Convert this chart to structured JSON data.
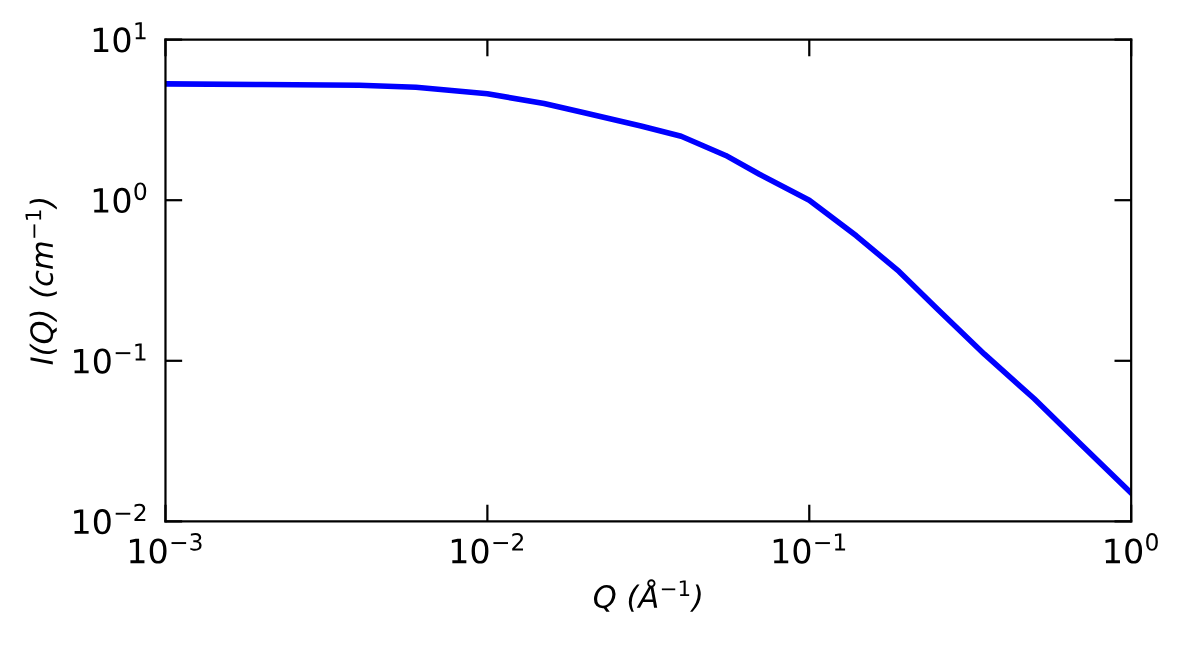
{
  "chart_data": {
    "type": "line",
    "xlabel": "Q (Å$^{−1}$)",
    "ylabel": "I(Q) (cm$^{−1}$)",
    "log": "xy",
    "grid": false,
    "legend": false,
    "line_style": "solid",
    "marker": "none",
    "x": [
      0.001,
      0.002,
      0.004,
      0.006,
      0.01,
      0.015,
      0.02,
      0.03,
      0.04,
      0.055,
      0.07,
      0.1,
      0.14,
      0.19,
      0.25,
      0.35,
      0.5,
      0.7,
      1.0
    ],
    "series": [
      {
        "color": "#0000ff",
        "values": [
          5.3,
          5.25,
          5.2,
          5.05,
          4.6,
          4.0,
          3.5,
          2.9,
          2.5,
          1.9,
          1.45,
          1.0,
          0.6,
          0.36,
          0.21,
          0.11,
          0.058,
          0.03,
          0.015
        ]
      }
    ],
    "xlim": [
      0.001,
      1.0
    ],
    "ylim": [
      0.01,
      10
    ],
    "xticks": [
      {
        "value": 0.001,
        "label": "10$^{−3}$"
      },
      {
        "value": 0.01,
        "label": "10$^{−2}$"
      },
      {
        "value": 0.1,
        "label": "10$^{−1}$"
      },
      {
        "value": 1,
        "label": "10$^{0}$"
      }
    ],
    "yticks": [
      {
        "value": 0.01,
        "label": "10$^{−2}$"
      },
      {
        "value": 0.1,
        "label": "10$^{−1}$"
      },
      {
        "value": 1,
        "label": "10$^{0}$"
      },
      {
        "value": 10,
        "label": "10$^{1}$"
      }
    ]
  }
}
